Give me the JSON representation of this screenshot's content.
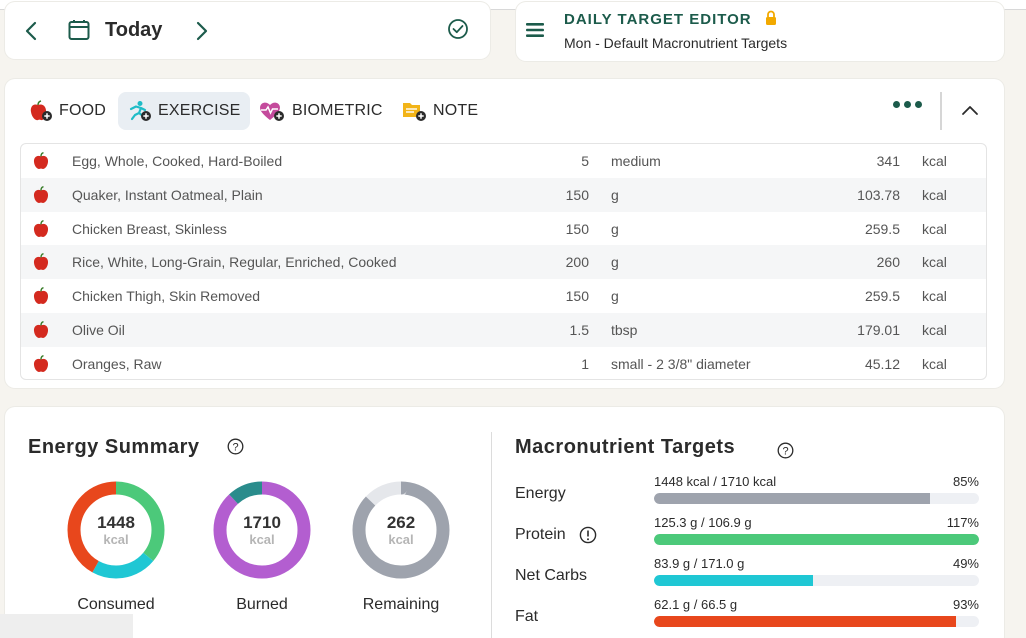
{
  "header": {
    "date_label": "Today"
  },
  "target_editor": {
    "title": "DAILY TARGET EDITOR",
    "subtitle": "Mon - Default Macronutrient Targets"
  },
  "tabs": [
    {
      "label": "FOOD",
      "icon": "apple-plus-icon",
      "active": false
    },
    {
      "label": "EXERCISE",
      "icon": "runner-plus-icon",
      "active": true
    },
    {
      "label": "BIOMETRIC",
      "icon": "heart-pulse-plus-icon",
      "active": false
    },
    {
      "label": "NOTE",
      "icon": "note-plus-icon",
      "active": false
    }
  ],
  "diary": [
    {
      "name": "Egg, Whole, Cooked, Hard-Boiled",
      "qty": "5",
      "unit": "medium",
      "kcal": "341",
      "kcal_unit": "kcal"
    },
    {
      "name": "Quaker, Instant Oatmeal, Plain",
      "qty": "150",
      "unit": "g",
      "kcal": "103.78",
      "kcal_unit": "kcal"
    },
    {
      "name": "Chicken Breast, Skinless",
      "qty": "150",
      "unit": "g",
      "kcal": "259.5",
      "kcal_unit": "kcal"
    },
    {
      "name": "Rice, White, Long-Grain, Regular, Enriched, Cooked",
      "qty": "200",
      "unit": "g",
      "kcal": "260",
      "kcal_unit": "kcal"
    },
    {
      "name": "Chicken Thigh, Skin Removed",
      "qty": "150",
      "unit": "g",
      "kcal": "259.5",
      "kcal_unit": "kcal"
    },
    {
      "name": "Olive Oil",
      "qty": "1.5",
      "unit": "tbsp",
      "kcal": "179.01",
      "kcal_unit": "kcal"
    },
    {
      "name": "Oranges, Raw",
      "qty": "1",
      "unit": "small - 2 3/8\" diameter",
      "kcal": "45.12",
      "kcal_unit": "kcal"
    }
  ],
  "energy_summary": {
    "title": "Energy Summary",
    "consumed": {
      "value": "1448",
      "unit": "kcal",
      "label": "Consumed",
      "segments": [
        {
          "fraction": 0.36,
          "color": "#4cc97a"
        },
        {
          "fraction": 0.22,
          "color": "#1fc7d4"
        },
        {
          "fraction": 0.42,
          "color": "#e8471c"
        }
      ]
    },
    "burned": {
      "value": "1710",
      "unit": "kcal",
      "label": "Burned",
      "segments": [
        {
          "fraction": 0.88,
          "color": "#b35ed0"
        },
        {
          "fraction": 0.12,
          "color": "#2a8c8c"
        }
      ]
    },
    "remaining": {
      "value": "262",
      "unit": "kcal",
      "label": "Remaining",
      "segments": [
        {
          "fraction": 0.87,
          "color": "#9ea3ad"
        },
        {
          "fraction": 0.13,
          "color": "#e5e7eb"
        }
      ]
    }
  },
  "macros": {
    "title": "Macronutrient Targets",
    "items": [
      {
        "label": "Energy",
        "text": "1448 kcal / 1710 kcal",
        "pct": "85%",
        "fill": 0.85,
        "color": "#9ea3ad",
        "info": false
      },
      {
        "label": "Protein",
        "text": "125.3 g / 106.9 g",
        "pct": "117%",
        "fill": 1.0,
        "color": "#4cc97a",
        "info": true
      },
      {
        "label": "Net Carbs",
        "text": "83.9 g / 171.0 g",
        "pct": "49%",
        "fill": 0.49,
        "color": "#1fc7d4",
        "info": false
      },
      {
        "label": "Fat",
        "text": "62.1 g / 66.5 g",
        "pct": "93%",
        "fill": 0.93,
        "color": "#e8471c",
        "info": false
      }
    ]
  },
  "colors": {
    "accent": "#1c5b4b",
    "lock": "#f2a900"
  }
}
